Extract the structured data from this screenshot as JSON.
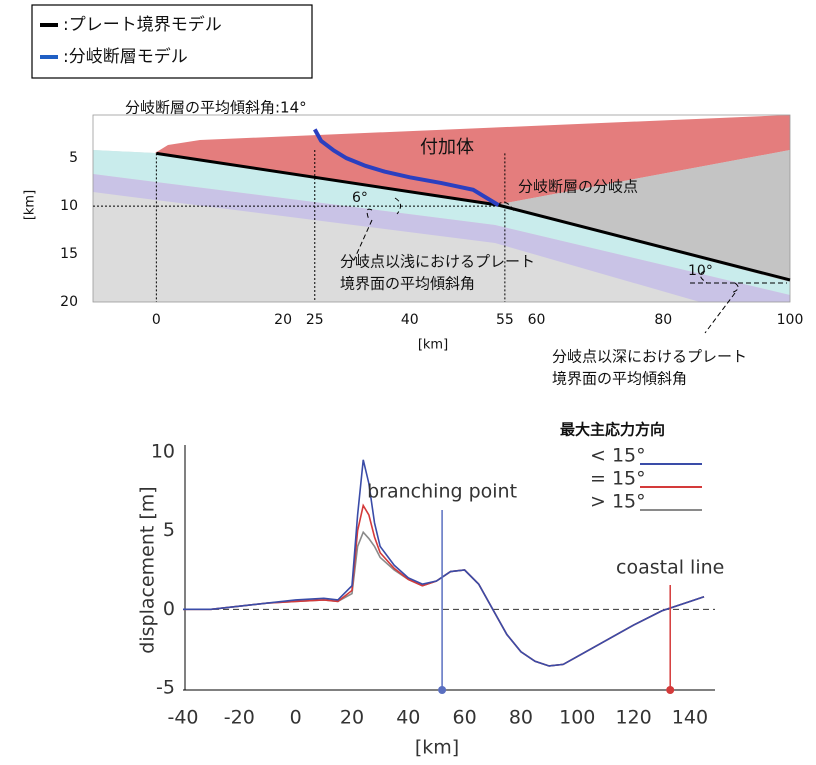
{
  "chart_data": [
    {
      "type": "cross-section",
      "legend": [
        {
          "name": ":プレート境界モデル",
          "color": "#000000"
        },
        {
          "name": ":分岐断層モデル",
          "color": "#1f5fc4"
        }
      ],
      "series": [
        {
          "name": ":プレート境界モデル",
          "color": "#000000",
          "x": [
            0,
            54,
            100
          ],
          "y": [
            4.5,
            9.9,
            17.7
          ]
        },
        {
          "name": ":分岐断層モデル",
          "color": "#2b3fc0",
          "x": [
            25,
            26,
            28,
            30,
            33,
            36,
            40,
            45,
            50,
            54
          ],
          "y": [
            2.0,
            3.2,
            4.2,
            5.0,
            5.8,
            6.4,
            7.0,
            7.6,
            8.3,
            9.9
          ]
        }
      ],
      "reference_x": [
        0,
        25,
        55
      ],
      "reference_y": 10,
      "annotations": [
        {
          "lines": [
            "分岐断層の平均傾斜角:14°"
          ]
        },
        {
          "lines": [
            "付加体"
          ]
        },
        {
          "lines": [
            "分岐断層の分岐点"
          ]
        },
        {
          "lines": [
            "6°"
          ]
        },
        {
          "lines": [
            "分岐点以浅におけるプレート",
            "境界面の平均傾斜角"
          ]
        },
        {
          "lines": [
            "10°"
          ]
        },
        {
          "lines": [
            "分岐点以深におけるプレート",
            "境界面の平均傾斜角"
          ]
        }
      ],
      "xlabel": "[km]",
      "ylabel": "[km]",
      "xlim": [
        -10,
        100
      ],
      "ylim": [
        20,
        0.5
      ],
      "xticks": [
        0,
        20,
        25,
        40,
        55,
        60,
        80,
        100
      ],
      "yticks": [
        5,
        10,
        15,
        20
      ]
    },
    {
      "type": "line",
      "xlabel": "[km]",
      "ylabel": "displacement [m]",
      "legend_title": "最大主応力方向",
      "x": [
        -40,
        -30,
        -20,
        -10,
        0,
        10,
        15,
        20,
        22,
        24,
        26,
        28,
        30,
        35,
        40,
        45,
        50,
        55,
        60,
        65,
        70,
        75,
        80,
        85,
        90,
        95,
        100,
        110,
        120,
        130,
        140,
        145
      ],
      "series": [
        {
          "name": "< 15°",
          "color": "#3a4ca8",
          "values": [
            0,
            0,
            0.2,
            0.4,
            0.6,
            0.7,
            0.6,
            1.5,
            6,
            9.5,
            8,
            5.5,
            4,
            2.8,
            2.0,
            1.6,
            1.8,
            2.4,
            2.5,
            1.6,
            0,
            -1.6,
            -2.7,
            -3.3,
            -3.6,
            -3.5,
            -3.0,
            -2.0,
            -1.0,
            -0.1,
            0.5,
            0.8
          ]
        },
        {
          "name": "= 15°",
          "color": "#d43a3a",
          "values": [
            0,
            0,
            0.2,
            0.4,
            0.5,
            0.6,
            0.5,
            1.2,
            5,
            6.6,
            6.0,
            4.6,
            3.6,
            2.6,
            1.9,
            1.5,
            1.8,
            2.4,
            2.5,
            1.6,
            0,
            -1.6,
            -2.7,
            -3.3,
            -3.6,
            -3.5,
            -3.0,
            -2.0,
            -1.0,
            -0.1,
            0.5,
            0.8
          ]
        },
        {
          "name": "> 15°",
          "color": "#8a8a8a",
          "values": [
            0,
            0,
            0.2,
            0.4,
            0.5,
            0.6,
            0.5,
            1,
            4,
            4.9,
            4.5,
            4,
            3.3,
            2.5,
            1.9,
            1.5,
            1.8,
            2.4,
            2.5,
            1.6,
            0,
            -1.6,
            -2.7,
            -3.3,
            -3.6,
            -3.5,
            -3.0,
            -2.0,
            -1.0,
            -0.1,
            0.5,
            0.8
          ]
        }
      ],
      "annotations": [
        {
          "text": "branching point",
          "x": 52,
          "color": "#5a6fc0"
        },
        {
          "text": "coastal line",
          "x": 133,
          "color": "#d43a3a"
        }
      ],
      "xlim": [
        -40,
        145
      ],
      "ylim": [
        -5,
        10
      ],
      "xticks": [
        -40,
        -20,
        0,
        20,
        40,
        60,
        80,
        100,
        120,
        140
      ],
      "yticks": [
        -5,
        0,
        5,
        10
      ]
    }
  ]
}
